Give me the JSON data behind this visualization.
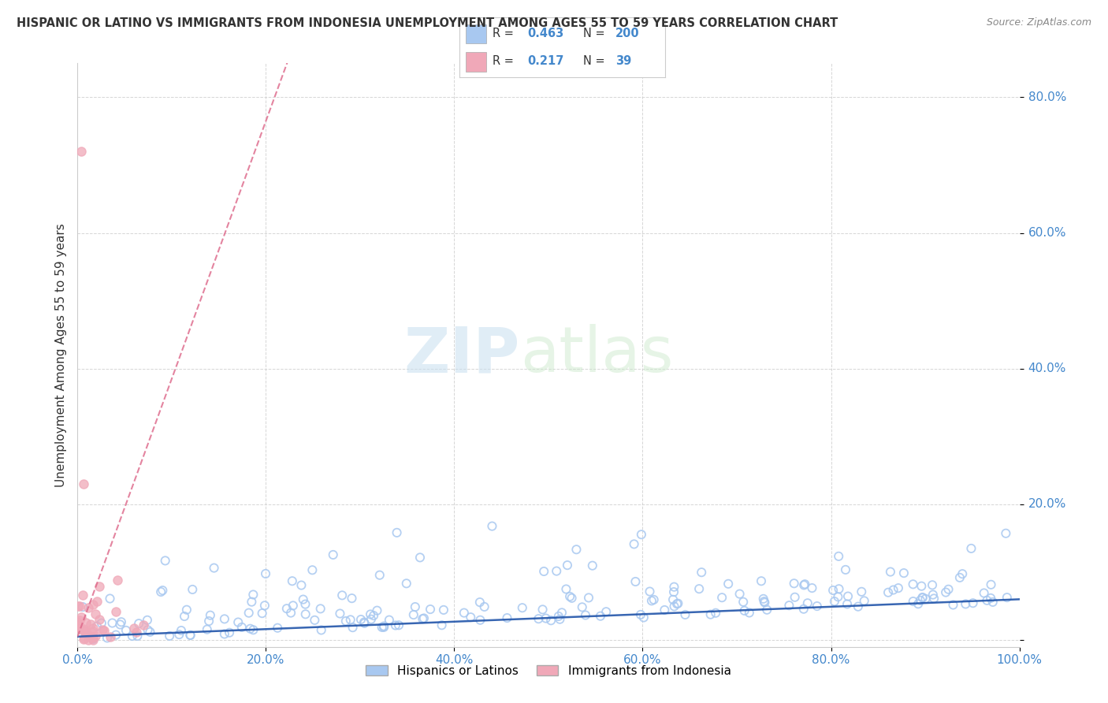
{
  "title": "HISPANIC OR LATINO VS IMMIGRANTS FROM INDONESIA UNEMPLOYMENT AMONG AGES 55 TO 59 YEARS CORRELATION CHART",
  "source": "Source: ZipAtlas.com",
  "ylabel": "Unemployment Among Ages 55 to 59 years",
  "xlim": [
    0,
    1.0
  ],
  "ylim": [
    -0.01,
    0.85
  ],
  "xticks": [
    0.0,
    0.2,
    0.4,
    0.6,
    0.8,
    1.0
  ],
  "xticklabels": [
    "0.0%",
    "20.0%",
    "40.0%",
    "60.0%",
    "80.0%",
    "100.0%"
  ],
  "yticks": [
    0.0,
    0.2,
    0.4,
    0.6,
    0.8
  ],
  "yticklabels": [
    "",
    "20.0%",
    "40.0%",
    "60.0%",
    "80.0%"
  ],
  "blue_color": "#a8c8f0",
  "blue_edge_color": "#7aaee0",
  "pink_color": "#f0a8b8",
  "pink_edge_color": "#e08090",
  "blue_line_color": "#2255aa",
  "pink_line_color": "#dd6688",
  "blue_R": 0.463,
  "blue_N": 200,
  "pink_R": 0.217,
  "pink_N": 39,
  "legend_label_blue": "Hispanics or Latinos",
  "legend_label_pink": "Immigrants from Indonesia",
  "watermark_zip": "ZIP",
  "watermark_atlas": "atlas",
  "background_color": "#ffffff",
  "grid_color": "#cccccc",
  "title_color": "#333333",
  "axis_label_color": "#333333",
  "tick_color": "#4488cc",
  "seed_blue": 42,
  "seed_pink": 77
}
